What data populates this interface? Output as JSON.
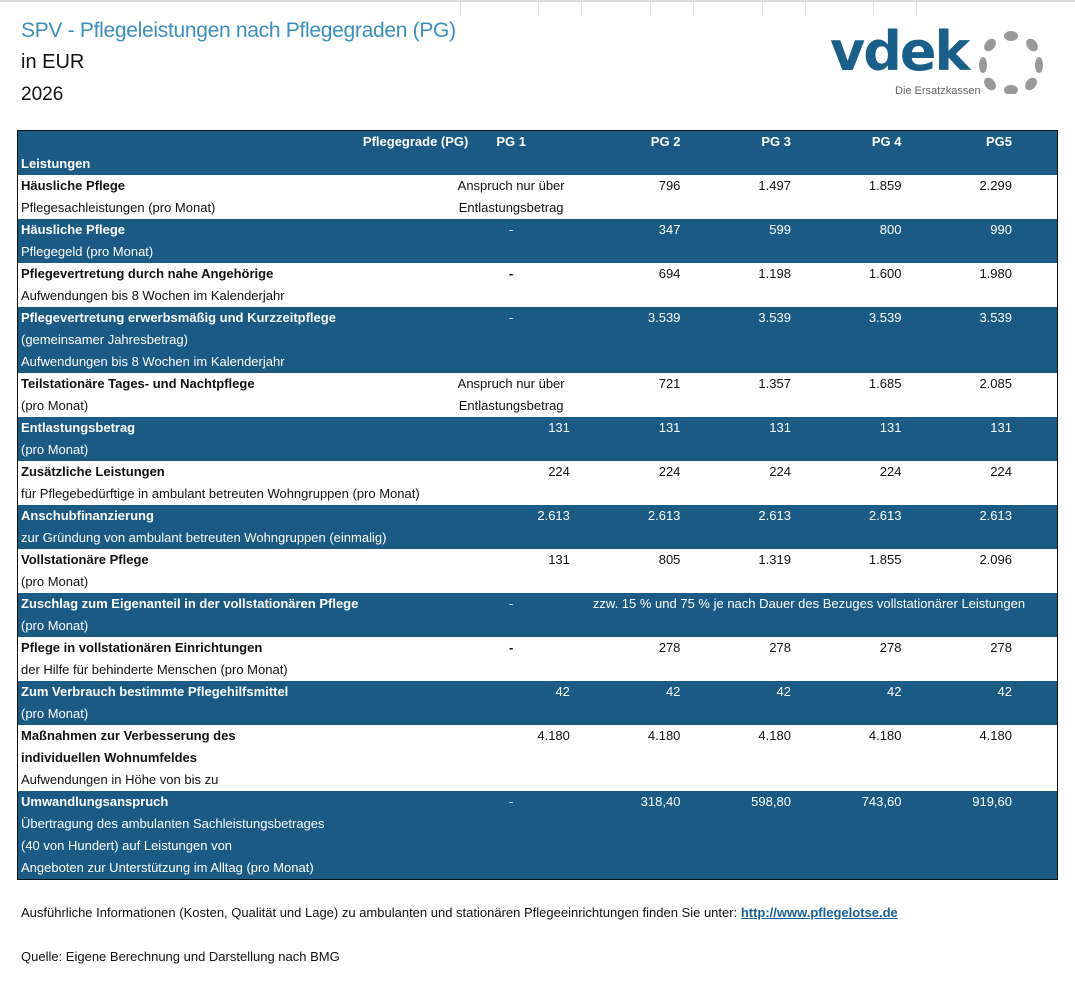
{
  "header": {
    "title": "SPV - Pflegeleistungen nach Pflegegraden (PG)",
    "unit": "in EUR",
    "year": "2026"
  },
  "logo": {
    "word": "vdek",
    "tagline": "Die Ersatzkassen"
  },
  "table": {
    "corner_label": "Pflegegrade (PG)",
    "row_header": "Leistungen",
    "columns": [
      "PG 1",
      "PG 2",
      "PG 3",
      "PG 4",
      "PG5"
    ],
    "rows": [
      {
        "title": [
          "Häusliche Pflege"
        ],
        "sub": [
          "Pflegesachleistungen (pro Monat)"
        ],
        "pg1": [
          "Anspruch nur über",
          "Entlastungsbetrag"
        ],
        "values": [
          "796",
          "1.497",
          "1.859",
          "2.299"
        ],
        "dark": false
      },
      {
        "title": [
          "Häusliche Pflege"
        ],
        "sub": [
          "Pflegegeld (pro Monat)"
        ],
        "pg1": [
          "-"
        ],
        "values": [
          "347",
          "599",
          "800",
          "990"
        ],
        "dark": true
      },
      {
        "title": [
          "Pflegevertretung durch nahe Angehörige"
        ],
        "sub": [
          "Aufwendungen bis 8 Wochen im Kalenderjahr"
        ],
        "pg1": [
          "-"
        ],
        "values": [
          "694",
          "1.198",
          "1.600",
          "1.980"
        ],
        "dark": false
      },
      {
        "title": [
          "Pflegevertretung erwerbsmäßig und Kurzzeitpflege"
        ],
        "sub": [
          "(gemeinsamer Jahresbetrag)",
          "Aufwendungen bis 8 Wochen im Kalenderjahr"
        ],
        "pg1": [
          "-"
        ],
        "values": [
          "3.539",
          "3.539",
          "3.539",
          "3.539"
        ],
        "dark": true
      },
      {
        "title": [
          "Teilstationäre Tages- und Nachtpflege"
        ],
        "sub": [
          "(pro Monat)"
        ],
        "pg1": [
          "Anspruch nur über",
          "Entlastungsbetrag"
        ],
        "values": [
          "721",
          "1.357",
          "1.685",
          "2.085"
        ],
        "dark": false
      },
      {
        "title": [
          "Entlastungsbetrag"
        ],
        "sub": [
          "(pro Monat)"
        ],
        "pg1": [
          "131"
        ],
        "values": [
          "131",
          "131",
          "131",
          "131"
        ],
        "dark": true
      },
      {
        "title": [
          "Zusätzliche Leistungen"
        ],
        "sub": [
          "für Pflegebedürftige in ambulant betreuten Wohngruppen (pro Monat)"
        ],
        "pg1": [
          "224"
        ],
        "values": [
          "224",
          "224",
          "224",
          "224"
        ],
        "dark": false
      },
      {
        "title": [
          "Anschubfinanzierung"
        ],
        "sub": [
          "zur Gründung von ambulant betreuten Wohngruppen (einmalig)"
        ],
        "pg1": [
          "2.613"
        ],
        "values": [
          "2.613",
          "2.613",
          "2.613",
          "2.613"
        ],
        "dark": true
      },
      {
        "title": [
          "Vollstationäre Pflege"
        ],
        "sub": [
          "(pro Monat)"
        ],
        "pg1": [
          "131"
        ],
        "values": [
          "805",
          "1.319",
          "1.855",
          "2.096"
        ],
        "dark": false
      },
      {
        "title": [
          "Zuschlag zum Eigenanteil in der vollstationären Pflege"
        ],
        "sub": [
          "(pro Monat)"
        ],
        "pg1": [
          "-"
        ],
        "note": "zzw. 15 % und 75 % je nach Dauer des Bezuges vollstationärer Leistungen",
        "dark": true
      },
      {
        "title": [
          "Pflege in vollstationären Einrichtungen"
        ],
        "sub": [
          "der Hilfe für behinderte Menschen (pro Monat)"
        ],
        "pg1": [
          "-"
        ],
        "values": [
          "278",
          "278",
          "278",
          "278"
        ],
        "dark": false
      },
      {
        "title": [
          "Zum Verbrauch bestimmte Pflegehilfsmittel"
        ],
        "sub": [
          "(pro Monat)"
        ],
        "pg1": [
          "42"
        ],
        "values": [
          "42",
          "42",
          "42",
          "42"
        ],
        "dark": true
      },
      {
        "title": [
          "Maßnahmen zur Verbesserung des",
          "individuellen Wohnumfeldes"
        ],
        "sub": [
          "Aufwendungen in Höhe von bis zu"
        ],
        "pg1": [
          "4.180"
        ],
        "values": [
          "4.180",
          "4.180",
          "4.180",
          "4.180"
        ],
        "dark": false
      },
      {
        "title": [
          "Umwandlungsanspruch"
        ],
        "sub": [
          "Übertragung des ambulanten Sachleistungsbetrages",
          "(40 von Hundert) auf Leistungen von",
          "Angeboten zur Unterstützung im Alltag (pro Monat)"
        ],
        "pg1": [
          "-"
        ],
        "values": [
          "318,40",
          "598,80",
          "743,60",
          "919,60"
        ],
        "dark": true
      }
    ]
  },
  "footer": {
    "info": "Ausführliche Informationen (Kosten, Qualität und Lage) zu ambulanten und stationären Pflegeeinrichtungen finden Sie unter: ",
    "link": "http://www.pflegelotse.de",
    "source": "Quelle: Eigene Berechnung und Darstellung nach BMG"
  },
  "colors": {
    "header_blue": "#1b5a84",
    "title_blue": "#3a8fbf",
    "link": "#1a5f9a"
  }
}
